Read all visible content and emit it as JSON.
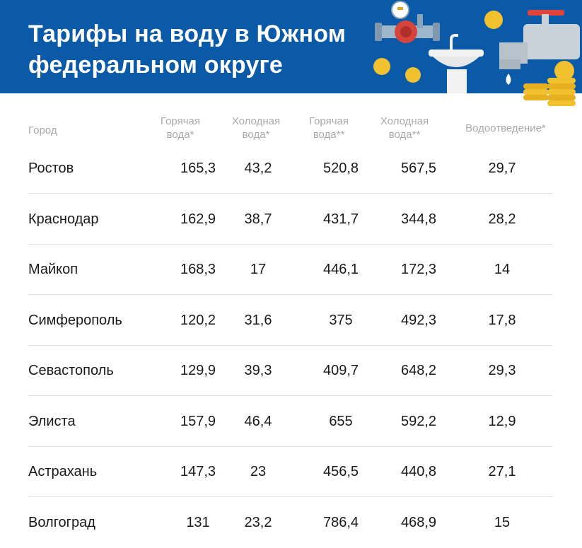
{
  "header": {
    "title_line1": "Тарифы на воду в Южном",
    "title_line2": "федеральном округе",
    "bg_color": "#0a5aa8",
    "decoration_icons": [
      "water-meter-icon",
      "sink-icon",
      "faucet-icon",
      "water-drop-icon",
      "ruble-coin-icon"
    ]
  },
  "table": {
    "headers": {
      "city": "Город",
      "hot_water": [
        "Горячая",
        "вода*"
      ],
      "cold_water": [
        "Холодная",
        "вода*"
      ],
      "hot_water2": [
        "Горячая",
        "вода**"
      ],
      "cold_water2": [
        "Холодная",
        "вода**"
      ],
      "drainage": "Водоотведение*"
    },
    "rows": [
      {
        "city": "Ростов",
        "hot": "165,3",
        "cold": "43,2",
        "hot2": "520,8",
        "cold2": "567,5",
        "drain": "29,7"
      },
      {
        "city": "Краснодар",
        "hot": "162,9",
        "cold": "38,7",
        "hot2": "431,7",
        "cold2": "344,8",
        "drain": "28,2"
      },
      {
        "city": "Майкоп",
        "hot": "168,3",
        "cold": "17",
        "hot2": "446,1",
        "cold2": "172,3",
        "drain": "14"
      },
      {
        "city": "Симферополь",
        "hot": "120,2",
        "cold": "31,6",
        "hot2": "375",
        "cold2": "492,3",
        "drain": "17,8"
      },
      {
        "city": "Севастополь",
        "hot": "129,9",
        "cold": "39,3",
        "hot2": "409,7",
        "cold2": "648,2",
        "drain": "29,3"
      },
      {
        "city": "Элиста",
        "hot": "157,9",
        "cold": "46,4",
        "hot2": "655",
        "cold2": "592,2",
        "drain": "12,9"
      },
      {
        "city": "Астрахань",
        "hot": "147,3",
        "cold": "23",
        "hot2": "456,5",
        "cold2": "440,8",
        "drain": "27,1"
      },
      {
        "city": "Волгоград",
        "hot": "131",
        "cold": "23,2",
        "hot2": "786,4",
        "cold2": "468,9",
        "drain": "15"
      }
    ]
  }
}
